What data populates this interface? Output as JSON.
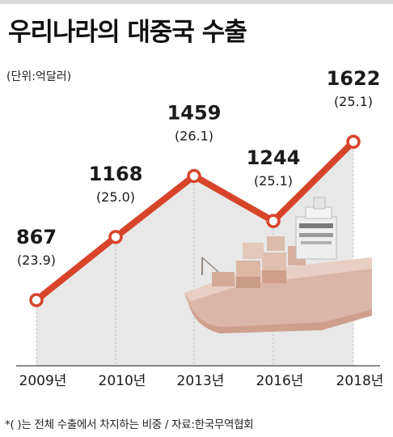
{
  "title": "우리나라의 대중국 수출",
  "unit_note": "(단위:억달러)",
  "footnote": "*( )는 전체 수출에서 차지하는 비중 / 자료:한국무역협회",
  "colors": {
    "line": "#d8442a",
    "marker_fill": "#ffffff",
    "area_fill": "#e8e8e8",
    "gridline": "#b0b0b0",
    "axis": "#444444"
  },
  "chart_data": {
    "type": "line",
    "title": "우리나라의 대중국 수출",
    "xlabel": "",
    "ylabel": "",
    "unit": "억달러",
    "categories": [
      "2009년",
      "2010년",
      "2013년",
      "2016년",
      "2018년"
    ],
    "values": [
      867,
      1168,
      1459,
      1244,
      1622
    ],
    "share_labels": [
      "(23.9)",
      "(25.0)",
      "(26.1)",
      "(25.1)",
      "(25.1)"
    ],
    "value_labels": [
      "867",
      "1168",
      "1459",
      "1244",
      "1622"
    ],
    "ylim": [
      600,
      1700
    ],
    "grid": "vertical"
  }
}
